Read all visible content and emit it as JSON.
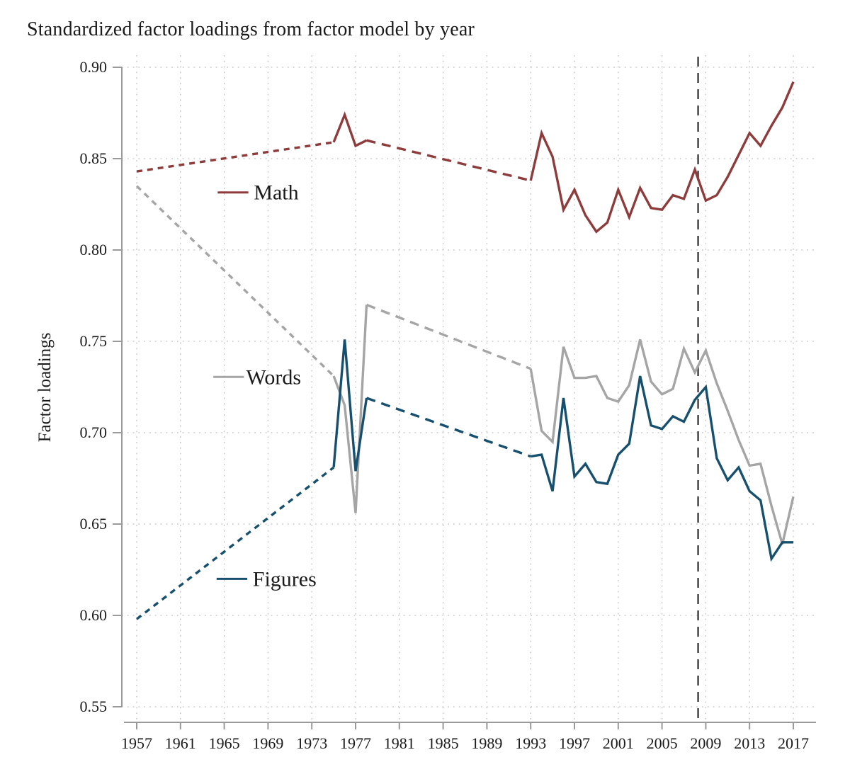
{
  "page": {
    "title": "Standardized factor loadings from factor model by year"
  },
  "chart_data": {
    "type": "line",
    "title": "Standardized factor loadings from factor model by year",
    "xlabel": "",
    "ylabel": "Factor loadings",
    "xlim": [
      1957,
      2017
    ],
    "ylim": [
      0.55,
      0.9
    ],
    "x_ticks": [
      1957,
      1961,
      1965,
      1969,
      1973,
      1977,
      1981,
      1985,
      1989,
      1993,
      1997,
      2001,
      2005,
      2009,
      2013,
      2017
    ],
    "y_ticks": [
      0.55,
      0.6,
      0.65,
      0.7,
      0.75,
      0.8,
      0.85,
      0.9
    ],
    "grid": "dotted",
    "legend_position": "inline-left",
    "reference_line": {
      "x": 2008.3,
      "style": "dashed",
      "color": "#4d4d4d"
    },
    "colors": {
      "axis": "#9a9a9a",
      "grid": "#bfbfbf",
      "text": "#1a1a1a"
    },
    "series": [
      {
        "name": "Math",
        "color": "#8d3b3b",
        "segments": [
          {
            "style": "dotted",
            "points": [
              [
                1957,
                0.843
              ],
              [
                1975,
                0.859
              ]
            ]
          },
          {
            "style": "solid",
            "points": [
              [
                1975,
                0.859
              ],
              [
                1976,
                0.874
              ],
              [
                1977,
                0.857
              ],
              [
                1978,
                0.86
              ]
            ]
          },
          {
            "style": "dashed",
            "points": [
              [
                1978,
                0.86
              ],
              [
                1993,
                0.838
              ]
            ]
          },
          {
            "style": "solid",
            "start_year": 1993,
            "values": [
              0.838,
              0.864,
              0.851,
              0.822,
              0.833,
              0.819,
              0.81,
              0.815,
              0.833,
              0.818,
              0.834,
              0.823,
              0.822,
              0.83,
              0.828,
              0.844,
              0.827,
              0.83,
              0.84,
              0.852,
              0.864,
              0.857,
              0.868,
              0.878,
              0.892
            ]
          }
        ]
      },
      {
        "name": "Words",
        "color": "#a5a5a5",
        "segments": [
          {
            "style": "dotted",
            "points": [
              [
                1957,
                0.835
              ],
              [
                1975,
                0.731
              ]
            ]
          },
          {
            "style": "solid",
            "points": [
              [
                1975,
                0.731
              ],
              [
                1976,
                0.715
              ],
              [
                1977,
                0.656
              ],
              [
                1978,
                0.77
              ]
            ]
          },
          {
            "style": "dashed",
            "points": [
              [
                1978,
                0.77
              ],
              [
                1993,
                0.735
              ]
            ]
          },
          {
            "style": "solid",
            "start_year": 1993,
            "values": [
              0.735,
              0.701,
              0.695,
              0.747,
              0.73,
              0.73,
              0.731,
              0.719,
              0.717,
              0.726,
              0.751,
              0.728,
              0.721,
              0.724,
              0.746,
              0.733,
              0.745,
              0.727,
              0.712,
              0.696,
              0.682,
              0.683,
              0.66,
              0.639,
              0.665
            ]
          }
        ]
      },
      {
        "name": "Figures",
        "color": "#17506e",
        "segments": [
          {
            "style": "dotted",
            "points": [
              [
                1957,
                0.598
              ],
              [
                1975,
                0.681
              ]
            ]
          },
          {
            "style": "solid",
            "points": [
              [
                1975,
                0.681
              ],
              [
                1976,
                0.751
              ],
              [
                1977,
                0.679
              ],
              [
                1978,
                0.719
              ]
            ]
          },
          {
            "style": "dashed",
            "points": [
              [
                1978,
                0.719
              ],
              [
                1993,
                0.687
              ]
            ]
          },
          {
            "style": "solid",
            "start_year": 1993,
            "values": [
              0.687,
              0.688,
              0.668,
              0.719,
              0.676,
              0.683,
              0.673,
              0.672,
              0.688,
              0.694,
              0.731,
              0.704,
              0.702,
              0.709,
              0.706,
              0.718,
              0.725,
              0.686,
              0.674,
              0.681,
              0.668,
              0.663,
              0.631,
              0.64,
              0.64
            ]
          }
        ]
      }
    ],
    "legend": [
      {
        "label": "Math",
        "x_start": 1964.4,
        "x_end": 1967.2,
        "text_x": 1967.7,
        "v": 0.8315
      },
      {
        "label": "Words",
        "x_start": 1964.0,
        "x_end": 1966.8,
        "text_x": 1967.0,
        "v": 0.7305
      },
      {
        "label": "Figures",
        "x_start": 1964.3,
        "x_end": 1967.1,
        "text_x": 1967.6,
        "v": 0.62
      }
    ]
  }
}
